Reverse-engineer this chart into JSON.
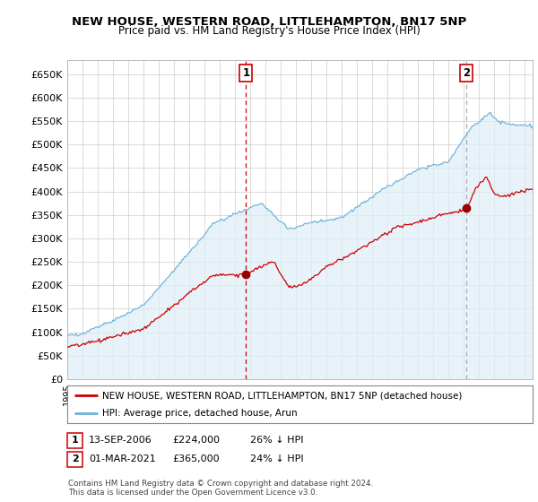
{
  "title": "NEW HOUSE, WESTERN ROAD, LITTLEHAMPTON, BN17 5NP",
  "subtitle": "Price paid vs. HM Land Registry's House Price Index (HPI)",
  "ylabel_ticks": [
    "£0",
    "£50K",
    "£100K",
    "£150K",
    "£200K",
    "£250K",
    "£300K",
    "£350K",
    "£400K",
    "£450K",
    "£500K",
    "£550K",
    "£600K",
    "£650K"
  ],
  "ytick_values": [
    0,
    50000,
    100000,
    150000,
    200000,
    250000,
    300000,
    350000,
    400000,
    450000,
    500000,
    550000,
    600000,
    650000
  ],
  "ylim": [
    0,
    680000
  ],
  "xlim_start": 1995.0,
  "xlim_end": 2025.5,
  "purchase1_x": 2006.71,
  "purchase1_y": 224000,
  "purchase2_x": 2021.17,
  "purchase2_y": 365000,
  "legend_line1": "NEW HOUSE, WESTERN ROAD, LITTLEHAMPTON, BN17 5NP (detached house)",
  "legend_line2": "HPI: Average price, detached house, Arun",
  "table_row1": [
    "1",
    "13-SEP-2006",
    "£224,000",
    "26% ↓ HPI"
  ],
  "table_row2": [
    "2",
    "01-MAR-2021",
    "£365,000",
    "24% ↓ HPI"
  ],
  "footnote": "Contains HM Land Registry data © Crown copyright and database right 2024.\nThis data is licensed under the Open Government Licence v3.0.",
  "hpi_color": "#6ab0d8",
  "hpi_fill_color": "#ddeef7",
  "price_color": "#cc0000",
  "vline1_color": "#cc0000",
  "vline2_color": "#aaaaaa",
  "bg_color": "#ffffff",
  "grid_color": "#cccccc"
}
